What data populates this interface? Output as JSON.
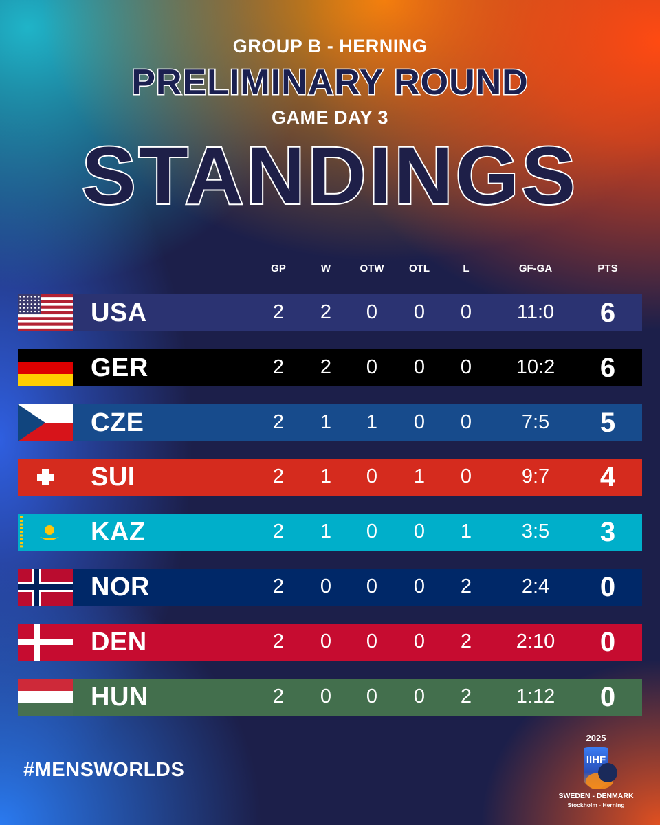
{
  "header": {
    "group": "GROUP B - HERNING",
    "round": "PRELIMINARY ROUND",
    "day": "GAME DAY 3",
    "title": "STANDINGS"
  },
  "columns": [
    "GP",
    "W",
    "OTW",
    "OTL",
    "L",
    "GF-GA",
    "PTS"
  ],
  "rows": [
    {
      "team": "USA",
      "flag": "usa-flag-icon",
      "color": "#2b3372",
      "gp": "2",
      "w": "2",
      "otw": "0",
      "otl": "0",
      "l": "0",
      "gfga": "11:0",
      "pts": "6"
    },
    {
      "team": "GER",
      "flag": "germany-flag-icon",
      "color": "#000000",
      "gp": "2",
      "w": "2",
      "otw": "0",
      "otl": "0",
      "l": "0",
      "gfga": "10:2",
      "pts": "6"
    },
    {
      "team": "CZE",
      "flag": "czech-flag-icon",
      "color": "#174b8c",
      "gp": "2",
      "w": "1",
      "otw": "1",
      "otl": "0",
      "l": "0",
      "gfga": "7:5",
      "pts": "5"
    },
    {
      "team": "SUI",
      "flag": "swiss-flag-icon",
      "color": "#d52b1e",
      "gp": "2",
      "w": "1",
      "otw": "0",
      "otl": "1",
      "l": "0",
      "gfga": "9:7",
      "pts": "4"
    },
    {
      "team": "KAZ",
      "flag": "kazakhstan-flag-icon",
      "color": "#00afca",
      "gp": "2",
      "w": "1",
      "otw": "0",
      "otl": "0",
      "l": "1",
      "gfga": "3:5",
      "pts": "3"
    },
    {
      "team": "NOR",
      "flag": "norway-flag-icon",
      "color": "#002868",
      "gp": "2",
      "w": "0",
      "otw": "0",
      "otl": "0",
      "l": "2",
      "gfga": "2:4",
      "pts": "0"
    },
    {
      "team": "DEN",
      "flag": "denmark-flag-icon",
      "color": "#c60c30",
      "gp": "2",
      "w": "0",
      "otw": "0",
      "otl": "0",
      "l": "2",
      "gfga": "2:10",
      "pts": "0"
    },
    {
      "team": "HUN",
      "flag": "hungary-flag-icon",
      "color": "#436f4d",
      "gp": "2",
      "w": "0",
      "otw": "0",
      "otl": "0",
      "l": "2",
      "gfga": "1:12",
      "pts": "0"
    }
  ],
  "footer": {
    "hashtag": "#MENSWORLDS",
    "logo_year": "2025",
    "logo_mark": "IIHF",
    "logo_hosts": "SWEDEN - DENMARK",
    "logo_cities": "Stockholm - Herning"
  }
}
